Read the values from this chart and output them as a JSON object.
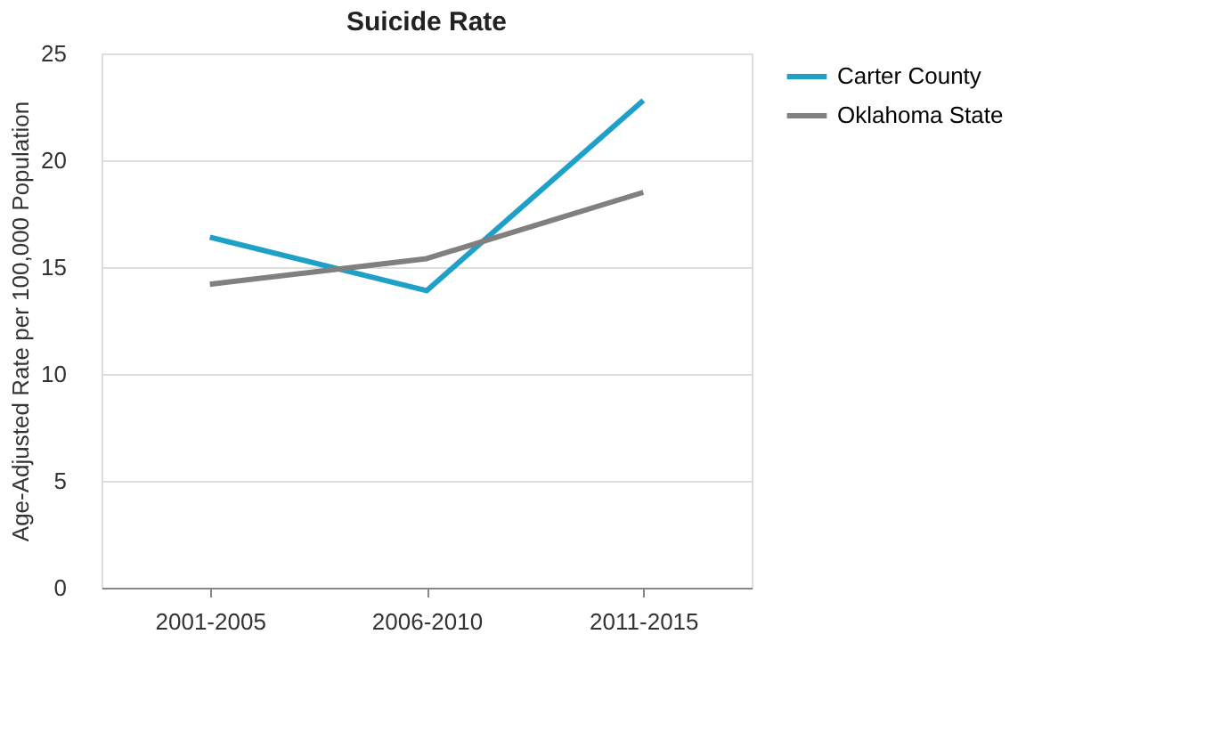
{
  "chart_data": {
    "type": "line",
    "title": "Suicide Rate",
    "ylabel": "Age-Adjusted Rate per 100,000 Population",
    "categories": [
      "2001-2005",
      "2006-2010",
      "2011-2015"
    ],
    "series": [
      {
        "name": "Carter County",
        "color": "#1fa0c8",
        "values": [
          16.4,
          13.9,
          22.8
        ]
      },
      {
        "name": "Oklahoma State",
        "color": "#808080",
        "values": [
          14.2,
          15.4,
          18.5
        ]
      }
    ],
    "ylim": [
      0,
      25
    ],
    "yticks": [
      0,
      5,
      10,
      15,
      20,
      25
    ],
    "grid": "y",
    "legend": "right",
    "marker": "none",
    "line_style": "solid"
  }
}
